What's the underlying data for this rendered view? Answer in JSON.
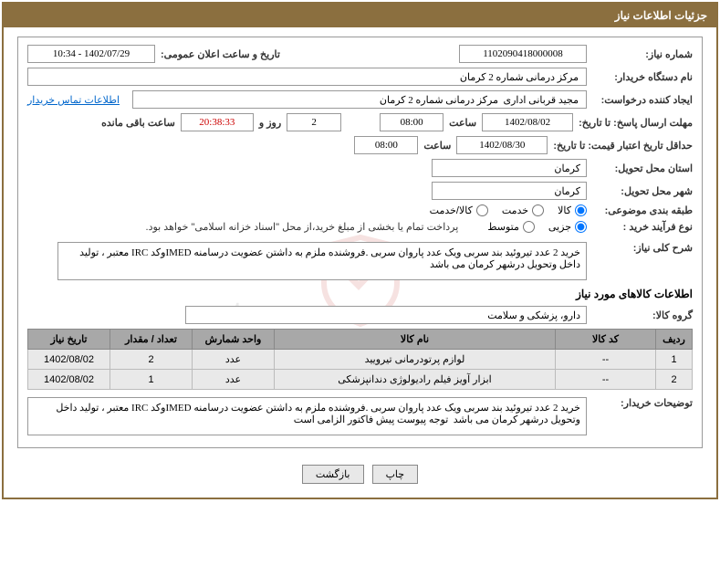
{
  "titlebar": "جزئیات اطلاعات نیاز",
  "fields": {
    "need_number_label": "شماره نیاز:",
    "need_number": "1102090418000008",
    "announce_label": "تاریخ و ساعت اعلان عمومی:",
    "announce_value": "1402/07/29 - 10:34",
    "buyer_org_label": "نام دستگاه خریدار:",
    "buyer_org": "مرکز درمانی شماره 2 کرمان",
    "requester_label": "ایجاد کننده درخواست:",
    "requester": "مجید قربانی اداری  مرکز درمانی شماره 2 کرمان",
    "contact_link": "اطلاعات تماس خریدار",
    "deadline_send_label": "مهلت ارسال پاسخ: تا تاریخ:",
    "deadline_send_date": "1402/08/02",
    "time_label": "ساعت",
    "deadline_send_time": "08:00",
    "days_remain": "2",
    "days_remain_label": "روز و",
    "time_remain": "20:38:33",
    "time_remain_label": "ساعت باقی مانده",
    "validity_label": "حداقل تاریخ اعتبار قیمت: تا تاریخ:",
    "validity_date": "1402/08/30",
    "validity_time": "08:00",
    "delivery_province_label": "استان محل تحویل:",
    "delivery_province": "کرمان",
    "delivery_city_label": "شهر محل تحویل:",
    "delivery_city": "کرمان",
    "category_label": "طبقه بندی موضوعی:",
    "cat_goods": "کالا",
    "cat_service": "خدمت",
    "cat_both": "کالا/خدمت",
    "process_label": "نوع فرآیند خرید :",
    "proc_partial": "جزیی",
    "proc_medium": "متوسط",
    "process_note": "پرداخت تمام یا بخشی از مبلغ خرید،از محل \"اسناد خزانه اسلامی\" خواهد بود.",
    "summary_label": "شرح کلی نیاز:",
    "summary_text": "خرید 2 عدد تیروئید بند سربی ویک عدد پاروان سربی .فروشنده ملزم به داشتن عضویت درسامنه IMEDوکد IRC معتبر ، تولید داخل وتحویل درشهر کرمان می باشد",
    "goods_section": "اطلاعات کالاهای مورد نیاز",
    "group_label": "گروه کالا:",
    "group_value": "دارو، پزشکی و سلامت",
    "buyer_desc_label": "توضیحات خریدار:",
    "buyer_desc_text": "خرید 2 عدد تیروئید بند سربی ویک عدد پاروان سربی .فروشنده ملزم به داشتن عضویت درسامنه IMEDوکد IRC معتبر ، تولید داخل وتحویل درشهر کرمان می باشد  توجه پیوست پیش فاکتور الزامی است"
  },
  "table": {
    "headers": {
      "row": "ردیف",
      "code": "کد کالا",
      "name": "نام کالا",
      "unit": "واحد شمارش",
      "qty": "تعداد / مقدار",
      "date": "تاریخ نیاز"
    },
    "rows": [
      {
        "n": "1",
        "code": "--",
        "name": "لوازم پرتودرمانی تیرویید",
        "unit": "عدد",
        "qty": "2",
        "date": "1402/08/02"
      },
      {
        "n": "2",
        "code": "--",
        "name": "ابزار آویز فیلم رادیولوژی دندانپزشکی",
        "unit": "عدد",
        "qty": "1",
        "date": "1402/08/02"
      }
    ]
  },
  "buttons": {
    "print": "چاپ",
    "back": "بازگشت"
  }
}
